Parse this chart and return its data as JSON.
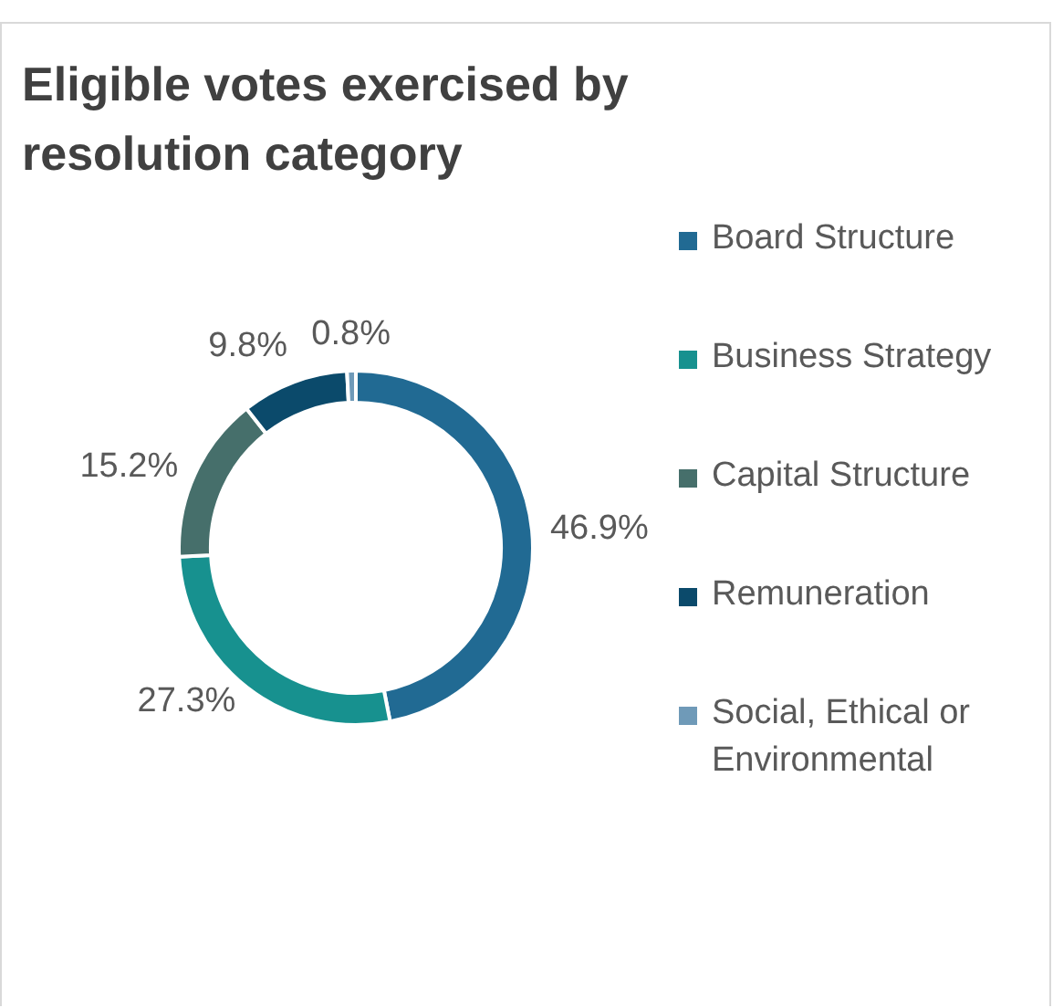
{
  "chart_data": {
    "type": "donut",
    "title": "Eligible votes exercised by resolution category",
    "categories": [
      "Board Structure",
      "Business Strategy",
      "Capital Structure",
      "Remuneration",
      "Social, Ethical or Environmental"
    ],
    "values": [
      46.9,
      27.3,
      15.2,
      9.8,
      0.8
    ],
    "colors": [
      "#216a93",
      "#17918f",
      "#466f6b",
      "#0b4a6b",
      "#6f9ab8"
    ],
    "value_labels": [
      "46.9%",
      "27.3%",
      "15.2%",
      "9.8%",
      "0.8%"
    ],
    "legend": "right"
  }
}
